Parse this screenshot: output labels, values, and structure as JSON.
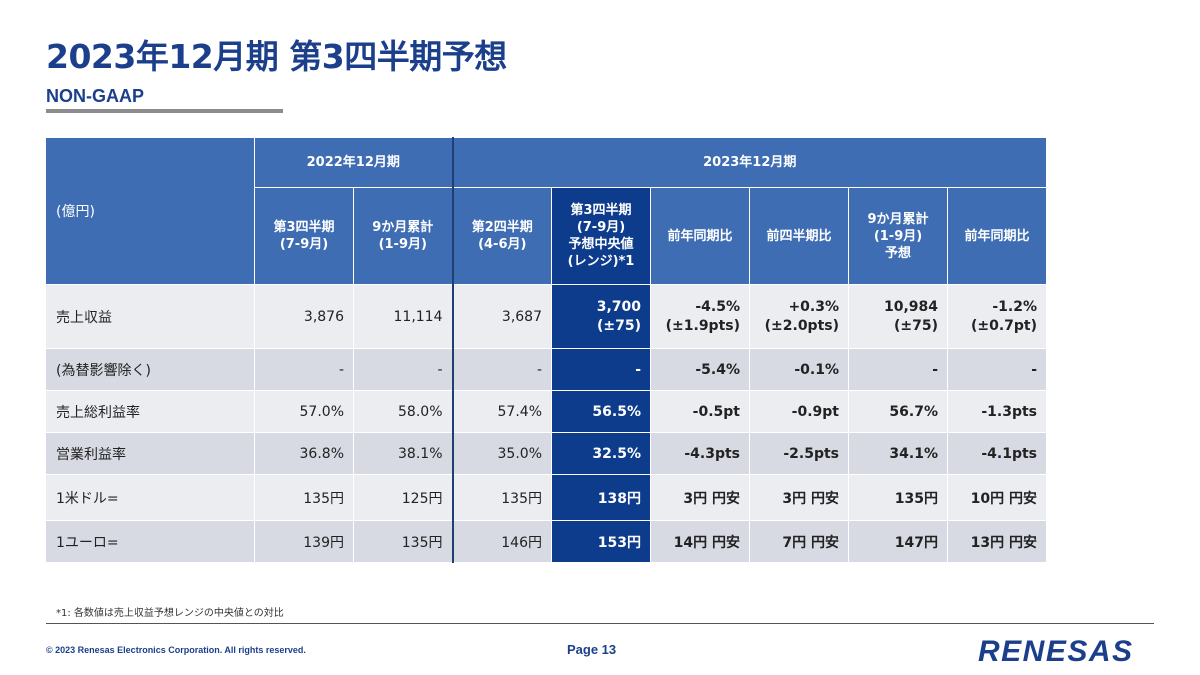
{
  "title": "2023年12月期 第3四半期予想",
  "subtitle": "NON-GAAP",
  "table": {
    "unit": "(億円)",
    "group_2022": "2022年12月期",
    "group_2023": "2023年12月期",
    "col_headers": [
      [
        "第3四半期",
        "(7-9月)"
      ],
      [
        "9か月累計",
        "(1-9月)"
      ],
      [
        "第2四半期",
        "(4-6月)"
      ],
      [
        "第3四半期",
        "(7-9月)",
        "予想中央値",
        "(レンジ)*1"
      ],
      [
        "前年同期比"
      ],
      [
        "前四半期比"
      ],
      [
        "9か月累計",
        "(1-9月)",
        "予想"
      ],
      [
        "前年同期比"
      ]
    ],
    "rows": [
      {
        "label": "売上収益",
        "cells": [
          [
            "3,876"
          ],
          [
            "11,114"
          ],
          [
            "3,687"
          ],
          [
            "3,700",
            "(±75)"
          ],
          [
            "-4.5%",
            "(±1.9pts)"
          ],
          [
            "+0.3%",
            "(±2.0pts)"
          ],
          [
            "10,984",
            "(±75)"
          ],
          [
            "-1.2%",
            "(±0.7pt)"
          ]
        ]
      },
      {
        "label": "(為替影響除く)",
        "cells": [
          [
            "-"
          ],
          [
            "-"
          ],
          [
            "-"
          ],
          [
            "-"
          ],
          [
            "-5.4%"
          ],
          [
            "-0.1%"
          ],
          [
            "-"
          ],
          [
            "-"
          ]
        ]
      },
      {
        "label": "売上総利益率",
        "cells": [
          [
            "57.0%"
          ],
          [
            "58.0%"
          ],
          [
            "57.4%"
          ],
          [
            "56.5%"
          ],
          [
            "-0.5pt"
          ],
          [
            "-0.9pt"
          ],
          [
            "56.7%"
          ],
          [
            "-1.3pts"
          ]
        ]
      },
      {
        "label": "営業利益率",
        "cells": [
          [
            "36.8%"
          ],
          [
            "38.1%"
          ],
          [
            "35.0%"
          ],
          [
            "32.5%"
          ],
          [
            "-4.3pts"
          ],
          [
            "-2.5pts"
          ],
          [
            "34.1%"
          ],
          [
            "-4.1pts"
          ]
        ]
      },
      {
        "label": "1米ドル=",
        "cells": [
          [
            "135円"
          ],
          [
            "125円"
          ],
          [
            "135円"
          ],
          [
            "138円"
          ],
          [
            "3円 円安"
          ],
          [
            "3円 円安"
          ],
          [
            "135円"
          ],
          [
            "10円 円安"
          ]
        ]
      },
      {
        "label": "1ユーロ=",
        "cells": [
          [
            "139円"
          ],
          [
            "135円"
          ],
          [
            "146円"
          ],
          [
            "153円"
          ],
          [
            "14円 円安"
          ],
          [
            "7円 円安"
          ],
          [
            "147円"
          ],
          [
            "13円 円安"
          ]
        ]
      }
    ]
  },
  "footnote": "*1: 各数値は売上収益予想レンジの中央値との対比",
  "copyright": "© 2023 Renesas Electronics Corporation. All rights reserved.",
  "page": "Page 13",
  "logo_text": "RENESAS",
  "colors": {
    "header": "#3e6db3",
    "highlight": "#0d3c8c",
    "title": "#1b3f8b",
    "row_light": "#ecedf1",
    "row_dark": "#d8dae3"
  }
}
